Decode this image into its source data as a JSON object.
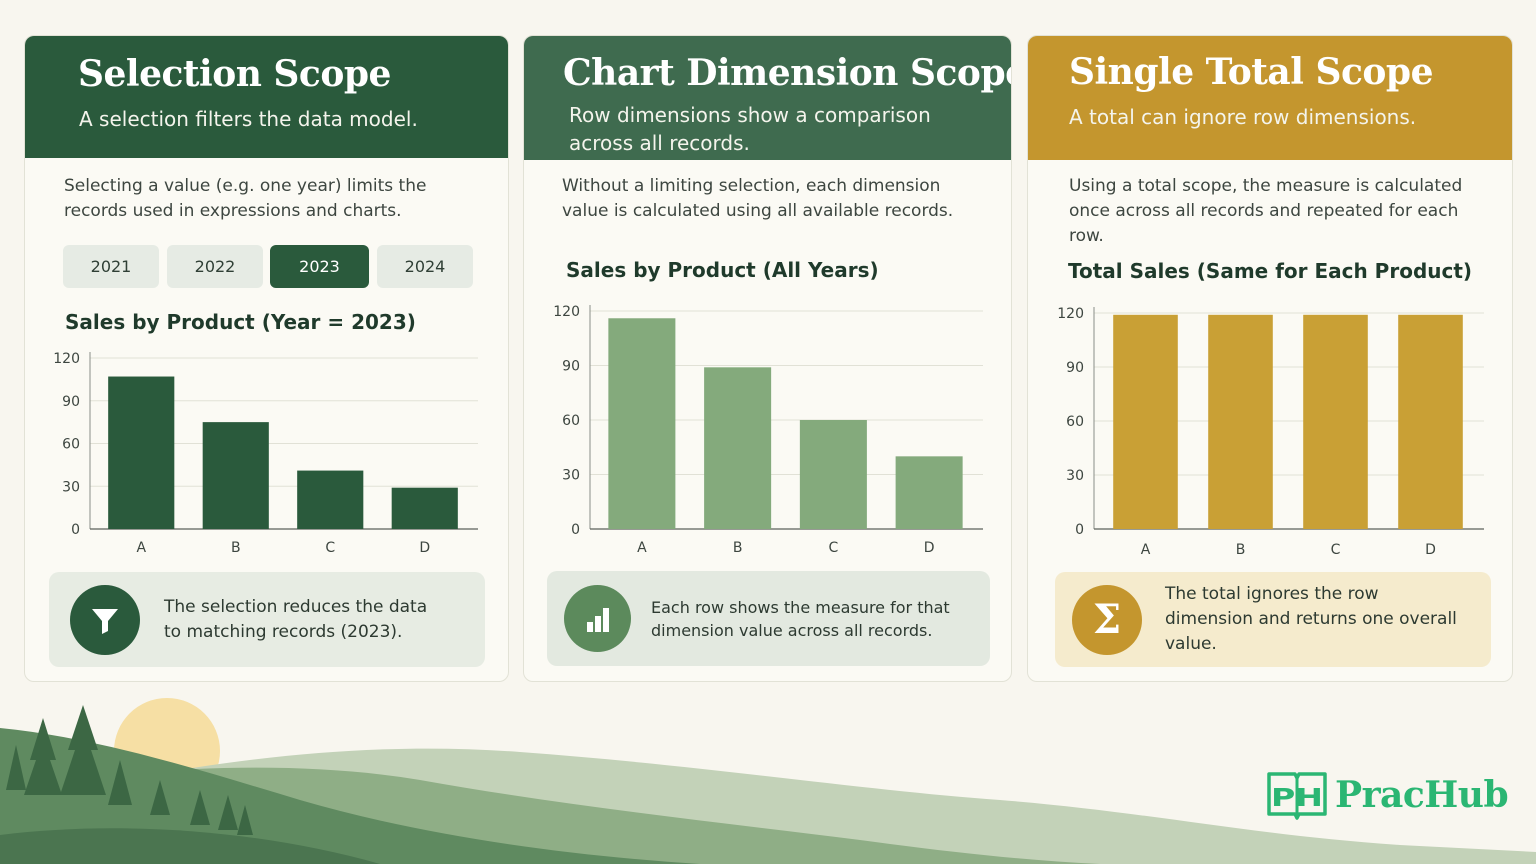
{
  "colors": {
    "dark_green": "#2a5a3c",
    "mid_green": "#3f6b4f",
    "light_green": "#84aa7c",
    "gold": "#c4962e",
    "brand_green": "#2bb673"
  },
  "selection_card": {
    "title": "Selection Scope",
    "subtitle": "A selection filters the data model.",
    "description": "Selecting a value (e.g. one year) limits the records used in expressions and charts.",
    "years": [
      "2021",
      "2022",
      "2023",
      "2024"
    ],
    "active_year": "2023",
    "chart_title": "Sales by Product (Year = 2023)",
    "note_icon": "filter-icon",
    "note": "The selection reduces the data to matching records (2023)."
  },
  "dimension_card": {
    "title": "Chart Dimension Scope",
    "subtitle": "Row dimensions show a comparison across all records.",
    "description": "Without a limiting selection, each dimension value is calculated using all available records.",
    "chart_title": "Sales by Product (All Years)",
    "note_icon": "bar-chart-icon",
    "note": "Each row shows the measure for that dimension value across all records."
  },
  "total_card": {
    "title": "Single Total Scope",
    "subtitle": "A total can ignore row dimensions.",
    "description": "Using a total scope, the measure is calculated once across all records and repeated for each row.",
    "chart_title": "Total Sales (Same for Each Product)",
    "note_icon": "sigma-icon",
    "note": "The total ignores the row dimension and returns one overall value."
  },
  "brand": {
    "logo_letters": "PH",
    "name": "PracHub"
  },
  "chart_data": [
    {
      "type": "bar",
      "title": "Sales by Product (Year = 2023)",
      "categories": [
        "A",
        "B",
        "C",
        "D"
      ],
      "values": [
        107,
        75,
        41,
        29
      ],
      "ylim": [
        0,
        120
      ],
      "yticks": [
        0,
        30,
        60,
        90,
        120
      ],
      "grid": true,
      "color": "#2a5a3c"
    },
    {
      "type": "bar",
      "title": "Sales by Product (All Years)",
      "categories": [
        "A",
        "B",
        "C",
        "D"
      ],
      "values": [
        116,
        89,
        60,
        40
      ],
      "ylim": [
        0,
        120
      ],
      "yticks": [
        0,
        30,
        60,
        90,
        120
      ],
      "grid": true,
      "color": "#84aa7c"
    },
    {
      "type": "bar",
      "title": "Total Sales (Same for Each Product)",
      "categories": [
        "A",
        "B",
        "C",
        "D"
      ],
      "values": [
        119,
        119,
        119,
        119
      ],
      "ylim": [
        0,
        120
      ],
      "yticks": [
        0,
        30,
        60,
        90,
        120
      ],
      "grid": true,
      "color": "#c9a035"
    }
  ]
}
